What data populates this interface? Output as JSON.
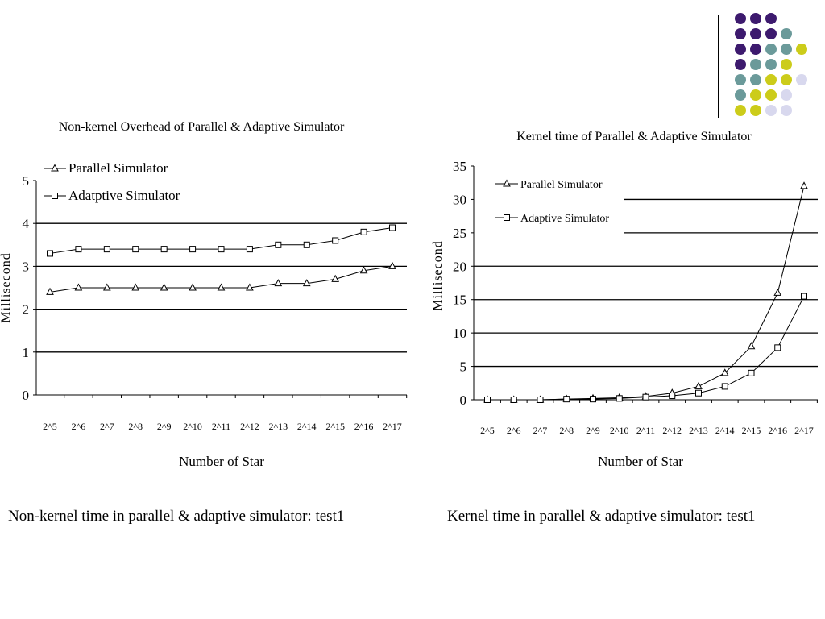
{
  "decoration": {
    "dot_colors": {
      "purple": "#3d1a6e",
      "teal": "#6b9a9a",
      "yellow": "#cccc1a",
      "lavender": "#d8d8ee"
    }
  },
  "captions": {
    "left": "Non-kernel time in parallel & adaptive simulator: test1",
    "right": "Kernel time in parallel & adaptive simulator: test1"
  },
  "chart_data": [
    {
      "type": "line",
      "title": "Non-kernel Overhead of Parallel & Adaptive Simulator",
      "xlabel": "Number of Star",
      "ylabel": "Millisecond",
      "categories": [
        "2^5",
        "2^6",
        "2^7",
        "2^8",
        "2^9",
        "2^10",
        "2^11",
        "2^12",
        "2^13",
        "2^14",
        "2^15",
        "2^16",
        "2^17"
      ],
      "ylim": [
        0,
        5
      ],
      "yticks": [
        "0",
        "1",
        "2",
        "3",
        "4",
        "5"
      ],
      "grid": "horizontal",
      "legend_position": "top-left",
      "series": [
        {
          "name": "Parallel Simulator",
          "marker": "triangle",
          "values": [
            2.4,
            2.5,
            2.5,
            2.5,
            2.5,
            2.5,
            2.5,
            2.5,
            2.6,
            2.6,
            2.7,
            2.9,
            3.0
          ]
        },
        {
          "name": "Adatptive Simulator",
          "marker": "square",
          "values": [
            3.3,
            3.4,
            3.4,
            3.4,
            3.4,
            3.4,
            3.4,
            3.4,
            3.5,
            3.5,
            3.6,
            3.8,
            3.9
          ]
        }
      ]
    },
    {
      "type": "line",
      "title": "Kernel time of Parallel & Adaptive Simulator",
      "xlabel": "Number of Star",
      "ylabel": "Millisecond",
      "categories": [
        "2^5",
        "2^6",
        "2^7",
        "2^8",
        "2^9",
        "2^10",
        "2^11",
        "2^12",
        "2^13",
        "2^14",
        "2^15",
        "2^16",
        "2^17"
      ],
      "ylim": [
        0,
        35
      ],
      "yticks": [
        "0",
        "5",
        "10",
        "15",
        "20",
        "25",
        "30",
        "35"
      ],
      "grid": "horizontal",
      "legend_position": "top-left",
      "series": [
        {
          "name": "Parallel Simulator",
          "marker": "triangle",
          "values": [
            0,
            0,
            0,
            0.1,
            0.2,
            0.3,
            0.5,
            1.0,
            2.0,
            4.0,
            8.0,
            16.0,
            32.0
          ]
        },
        {
          "name": "Adaptive Simulator",
          "marker": "square",
          "values": [
            0,
            0,
            0,
            0.1,
            0.1,
            0.2,
            0.4,
            0.6,
            1.0,
            2.0,
            4.0,
            7.8,
            15.5
          ]
        }
      ]
    }
  ]
}
